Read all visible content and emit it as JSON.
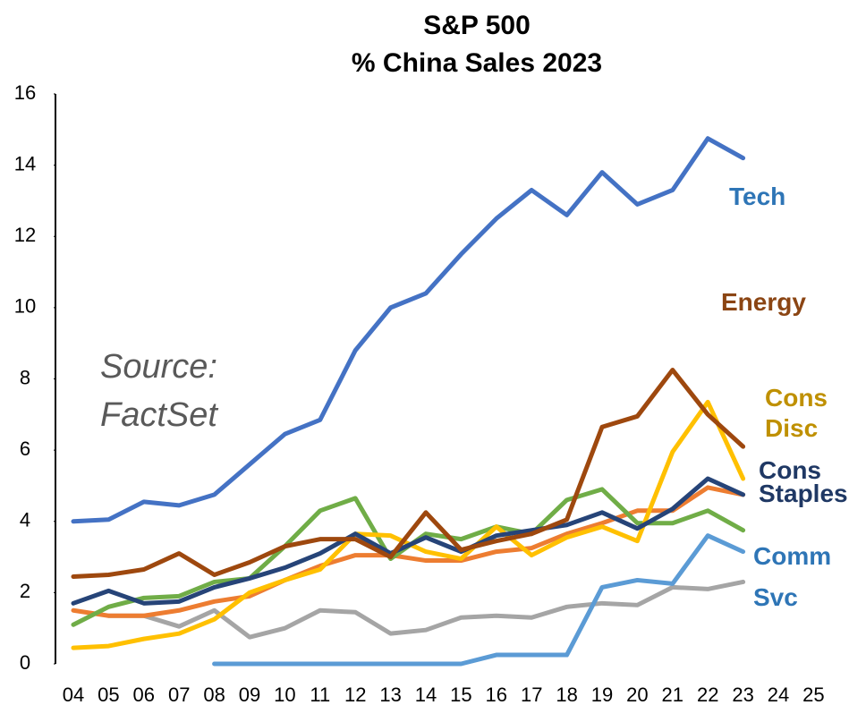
{
  "chart_data": {
    "type": "line",
    "title": [
      "S&P 500",
      "% China Sales   2023"
    ],
    "annotation": "Source: FactSet",
    "categories": [
      "04",
      "05",
      "06",
      "07",
      "08",
      "09",
      "10",
      "11",
      "12",
      "13",
      "14",
      "15",
      "16",
      "17",
      "18",
      "19",
      "20",
      "21",
      "22",
      "23",
      "24",
      "25"
    ],
    "ylim": [
      0,
      16
    ],
    "yticks": [
      0,
      2,
      4,
      6,
      8,
      10,
      12,
      14,
      16
    ],
    "grid": false,
    "series": [
      {
        "color": "#a5a5a5",
        "values": [
          null,
          1.35,
          1.35,
          1.05,
          1.5,
          0.75,
          1.0,
          1.5,
          1.45,
          0.85,
          0.95,
          1.3,
          1.35,
          1.3,
          1.6,
          1.7,
          1.65,
          2.15,
          2.1,
          2.3,
          null,
          null
        ]
      },
      {
        "color": "#ed7d31",
        "values": [
          1.5,
          1.35,
          1.35,
          1.5,
          1.75,
          1.9,
          2.35,
          2.75,
          3.05,
          3.05,
          2.9,
          2.9,
          3.15,
          3.25,
          3.65,
          3.95,
          4.3,
          4.3,
          4.95,
          4.75,
          null,
          null
        ]
      },
      {
        "color": "#70ad47",
        "values": [
          1.1,
          1.6,
          1.85,
          1.9,
          2.3,
          2.4,
          3.3,
          4.3,
          4.65,
          2.95,
          3.65,
          3.5,
          3.85,
          3.65,
          4.6,
          4.9,
          3.95,
          3.95,
          4.3,
          3.75,
          null,
          null
        ]
      },
      {
        "name": "Comm Svc",
        "color": "#5b9bd5",
        "label_color": "#2e75b6",
        "values": [
          null,
          null,
          null,
          null,
          0,
          0,
          0,
          0,
          0,
          0,
          0,
          0,
          0.25,
          0.25,
          0.25,
          2.15,
          2.35,
          2.25,
          3.6,
          3.15,
          null,
          null
        ]
      },
      {
        "name": "Cons Disc",
        "color": "#ffc000",
        "label_color": "#bf9000",
        "values": [
          0.45,
          0.5,
          0.7,
          0.85,
          1.25,
          2.0,
          2.35,
          2.65,
          3.65,
          3.6,
          3.15,
          2.95,
          3.85,
          3.05,
          3.55,
          3.85,
          3.45,
          5.95,
          7.35,
          5.2,
          null,
          null
        ]
      },
      {
        "name": "Cons Staples",
        "color": "#264478",
        "label_color": "#1f3864",
        "values": [
          1.7,
          2.05,
          1.7,
          1.75,
          2.15,
          2.4,
          2.7,
          3.1,
          3.65,
          3.1,
          3.55,
          3.15,
          3.6,
          3.75,
          3.9,
          4.25,
          3.8,
          4.35,
          5.2,
          4.75,
          null,
          null
        ]
      },
      {
        "name": "Energy",
        "color": "#9e480e",
        "label_color": "#8b4513",
        "values": [
          2.45,
          2.5,
          2.65,
          3.1,
          2.5,
          2.85,
          3.3,
          3.5,
          3.5,
          3.0,
          4.25,
          3.2,
          3.45,
          3.65,
          4.05,
          6.65,
          6.95,
          8.25,
          7.0,
          6.1,
          null,
          null
        ]
      },
      {
        "name": "Tech",
        "color": "#4472c4",
        "label_color": "#2e75b6",
        "values": [
          4.0,
          4.05,
          4.55,
          4.45,
          4.75,
          5.6,
          6.45,
          6.85,
          8.8,
          10.0,
          10.4,
          11.5,
          12.5,
          13.3,
          12.6,
          13.8,
          12.9,
          13.3,
          14.75,
          14.2,
          null,
          null
        ]
      }
    ]
  }
}
